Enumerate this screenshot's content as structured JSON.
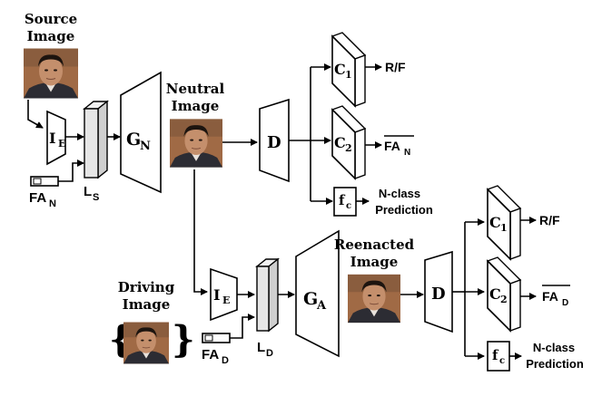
{
  "labels": {
    "source_image": [
      "Source",
      "Image"
    ],
    "neutral_image": [
      "Neutral",
      "Image"
    ],
    "driving_image": [
      "Driving",
      "Image"
    ],
    "reenacted_image": [
      "Reenacted",
      "Image"
    ],
    "ie": "I",
    "ie_sub": "E",
    "gn": "G",
    "gn_sub": "N",
    "ga": "G",
    "ga_sub": "A",
    "d": "D",
    "c": "C",
    "c1_sub": "1",
    "c2_sub": "2",
    "fc": "f",
    "fc_sub": "c",
    "ls": "L",
    "ls_sub": "S",
    "ld": "L",
    "ld_sub": "D",
    "fan": "FA",
    "fan_sub": "N",
    "fad": "FA",
    "fad_sub": "D",
    "rf": "R/F",
    "nclass": [
      "N-class",
      "Prediction"
    ]
  },
  "colors": {
    "face_background": "#a06a45",
    "skin": "#c48f6c",
    "hair": "#1c140f",
    "suit": "#2c2c33",
    "latent_fill": "#e6e6e6"
  }
}
